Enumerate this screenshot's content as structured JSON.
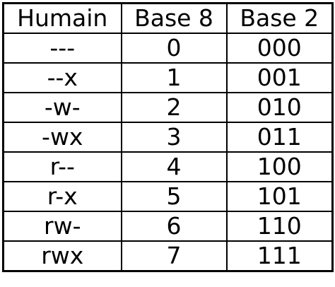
{
  "table": {
    "headers": [
      "Humain",
      "Base 8",
      "Base 2"
    ],
    "rows": [
      [
        "---",
        "0",
        "000"
      ],
      [
        "--x",
        "1",
        "001"
      ],
      [
        "-w-",
        "2",
        "010"
      ],
      [
        "-wx",
        "3",
        "011"
      ],
      [
        "r--",
        "4",
        "100"
      ],
      [
        "r-x",
        "5",
        "101"
      ],
      [
        "rw-",
        "6",
        "110"
      ],
      [
        "rwx",
        "7",
        "111"
      ]
    ]
  }
}
